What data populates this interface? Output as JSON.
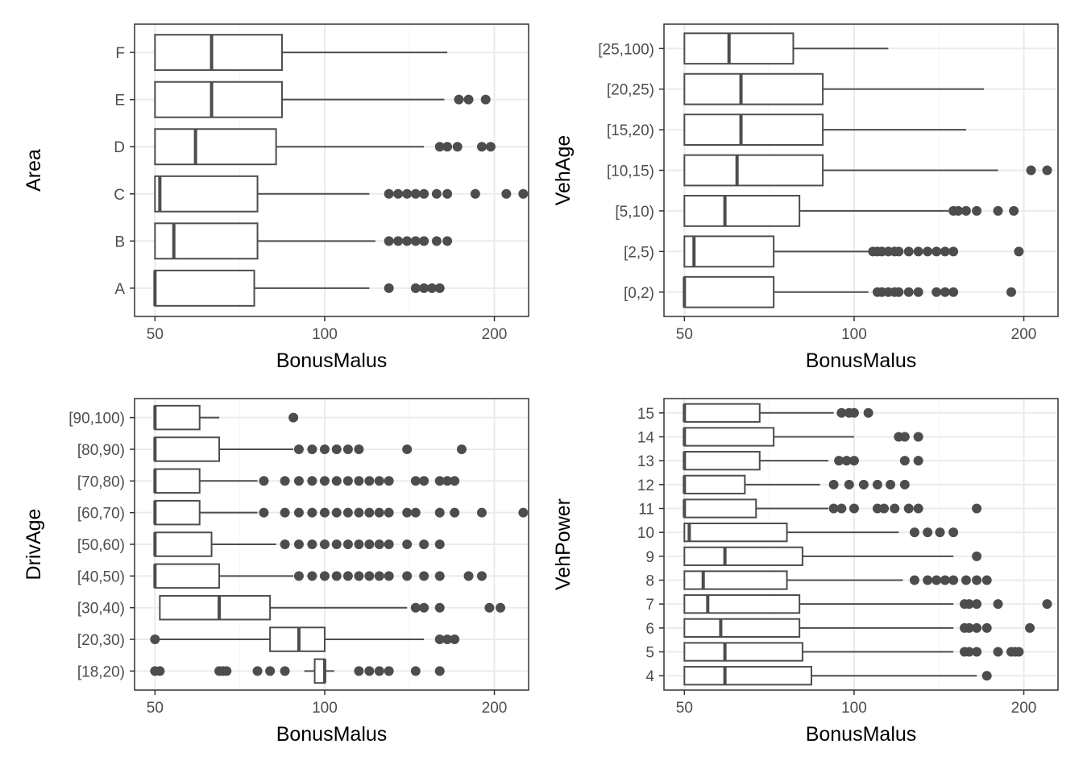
{
  "chart_data": [
    {
      "type": "boxplot",
      "orientation": "horizontal",
      "xlabel": "BonusMalus",
      "ylabel": "Area",
      "x_scale": "log",
      "x_ticks": [
        50,
        100,
        200
      ],
      "xlim": [
        46,
        230
      ],
      "grid": true,
      "categories": [
        "A",
        "B",
        "C",
        "D",
        "E",
        "F"
      ],
      "boxes": [
        {
          "category": "A",
          "q1": 50,
          "median": 50,
          "q3": 75,
          "whisker_low": 50,
          "whisker_high": 120,
          "outliers": [
            130,
            145,
            150,
            155,
            160
          ]
        },
        {
          "category": "B",
          "q1": 50,
          "median": 54,
          "q3": 76,
          "whisker_low": 50,
          "whisker_high": 123,
          "outliers": [
            130,
            135,
            140,
            145,
            150,
            158,
            165
          ]
        },
        {
          "category": "C",
          "q1": 50,
          "median": 51,
          "q3": 76,
          "whisker_low": 50,
          "whisker_high": 120,
          "outliers": [
            130,
            135,
            140,
            145,
            150,
            158,
            165,
            185,
            210,
            225
          ]
        },
        {
          "category": "D",
          "q1": 50,
          "median": 59,
          "q3": 82,
          "whisker_low": 50,
          "whisker_high": 150,
          "outliers": [
            160,
            165,
            172,
            190,
            197
          ]
        },
        {
          "category": "E",
          "q1": 50,
          "median": 63,
          "q3": 84,
          "whisker_low": 50,
          "whisker_high": 163,
          "outliers": [
            173,
            180,
            193
          ]
        },
        {
          "category": "F",
          "q1": 50,
          "median": 63,
          "q3": 84,
          "whisker_low": 50,
          "whisker_high": 165,
          "outliers": []
        }
      ]
    },
    {
      "type": "boxplot",
      "orientation": "horizontal",
      "xlabel": "BonusMalus",
      "ylabel": "VehAge",
      "x_scale": "log",
      "x_ticks": [
        50,
        100,
        200
      ],
      "xlim": [
        46,
        230
      ],
      "grid": true,
      "categories": [
        "[0,2)",
        "[2,5)",
        "[5,10)",
        "[10,15)",
        "[15,20)",
        "[20,25)",
        "[25,100)"
      ],
      "boxes": [
        {
          "category": "[0,2)",
          "q1": 50,
          "median": 50,
          "q3": 72,
          "whisker_low": 50,
          "whisker_high": 106,
          "outliers": [
            110,
            112,
            115,
            118,
            120,
            125,
            130,
            140,
            145,
            150,
            190
          ]
        },
        {
          "category": "[2,5)",
          "q1": 50,
          "median": 52,
          "q3": 72,
          "whisker_low": 50,
          "whisker_high": 106,
          "outliers": [
            108,
            110,
            112,
            115,
            118,
            120,
            125,
            130,
            135,
            140,
            145,
            150,
            196
          ]
        },
        {
          "category": "[5,10)",
          "q1": 50,
          "median": 59,
          "q3": 80,
          "whisker_low": 50,
          "whisker_high": 147,
          "outliers": [
            150,
            153,
            158,
            165,
            180,
            192
          ]
        },
        {
          "category": "[10,15)",
          "q1": 50,
          "median": 62,
          "q3": 88,
          "whisker_low": 50,
          "whisker_high": 180,
          "outliers": [
            206,
            220
          ]
        },
        {
          "category": "[15,20)",
          "q1": 50,
          "median": 63,
          "q3": 88,
          "whisker_low": 50,
          "whisker_high": 158,
          "outliers": []
        },
        {
          "category": "[20,25)",
          "q1": 50,
          "median": 63,
          "q3": 88,
          "whisker_low": 50,
          "whisker_high": 170,
          "outliers": []
        },
        {
          "category": "[25,100)",
          "q1": 50,
          "median": 60,
          "q3": 78,
          "whisker_low": 50,
          "whisker_high": 115,
          "outliers": []
        }
      ]
    },
    {
      "type": "boxplot",
      "orientation": "horizontal",
      "xlabel": "BonusMalus",
      "ylabel": "DrivAge",
      "x_scale": "log",
      "x_ticks": [
        50,
        100,
        200
      ],
      "xlim": [
        46,
        230
      ],
      "grid": true,
      "categories": [
        "[18,20)",
        "[20,30)",
        "[30,40)",
        "[40,50)",
        "[50,60)",
        "[60,70)",
        "[70,80)",
        "[80,90)",
        "[90,100)"
      ],
      "boxes": [
        {
          "category": "[18,20)",
          "q1": 96,
          "median": 100,
          "q3": 100,
          "whisker_low": 92,
          "whisker_high": 104,
          "outliers": [
            50,
            51,
            65,
            66,
            67,
            76,
            80,
            85,
            115,
            120,
            125,
            130,
            145,
            160
          ]
        },
        {
          "category": "[20,30)",
          "q1": 80,
          "median": 90,
          "q3": 100,
          "whisker_low": 50,
          "whisker_high": 150,
          "outliers": [
            50,
            160,
            165,
            170
          ]
        },
        {
          "category": "[30,40)",
          "q1": 51,
          "median": 65,
          "q3": 80,
          "whisker_low": 51,
          "whisker_high": 140,
          "outliers": [
            145,
            150,
            160,
            196,
            205
          ]
        },
        {
          "category": "[40,50)",
          "q1": 50,
          "median": 50,
          "q3": 65,
          "whisker_low": 50,
          "whisker_high": 88,
          "outliers": [
            90,
            95,
            100,
            105,
            110,
            115,
            120,
            125,
            130,
            140,
            150,
            160,
            180,
            190
          ]
        },
        {
          "category": "[50,60)",
          "q1": 50,
          "median": 50,
          "q3": 63,
          "whisker_low": 50,
          "whisker_high": 82,
          "outliers": [
            85,
            90,
            95,
            100,
            105,
            110,
            115,
            120,
            125,
            130,
            140,
            150,
            160
          ]
        },
        {
          "category": "[60,70)",
          "q1": 50,
          "median": 50,
          "q3": 60,
          "whisker_low": 50,
          "whisker_high": 76,
          "outliers": [
            78,
            85,
            90,
            95,
            100,
            105,
            110,
            115,
            120,
            125,
            130,
            140,
            145,
            160,
            170,
            190,
            225
          ]
        },
        {
          "category": "[70,80)",
          "q1": 50,
          "median": 50,
          "q3": 60,
          "whisker_low": 50,
          "whisker_high": 76,
          "outliers": [
            78,
            85,
            90,
            95,
            100,
            105,
            110,
            115,
            120,
            125,
            130,
            145,
            150,
            160,
            165,
            170
          ]
        },
        {
          "category": "[80,90)",
          "q1": 50,
          "median": 50,
          "q3": 65,
          "whisker_low": 50,
          "whisker_high": 88,
          "outliers": [
            90,
            95,
            100,
            105,
            110,
            115,
            140,
            175
          ]
        },
        {
          "category": "[90,100)",
          "q1": 50,
          "median": 50,
          "q3": 60,
          "whisker_low": 50,
          "whisker_high": 65,
          "outliers": [
            88
          ]
        }
      ]
    },
    {
      "type": "boxplot",
      "orientation": "horizontal",
      "xlabel": "BonusMalus",
      "ylabel": "VehPower",
      "x_scale": "log",
      "x_ticks": [
        50,
        100,
        200
      ],
      "xlim": [
        46,
        230
      ],
      "grid": true,
      "categories": [
        "4",
        "5",
        "6",
        "7",
        "8",
        "9",
        "10",
        "11",
        "12",
        "13",
        "14",
        "15"
      ],
      "boxes": [
        {
          "category": "4",
          "q1": 50,
          "median": 59,
          "q3": 84,
          "whisker_low": 50,
          "whisker_high": 165,
          "outliers": [
            172
          ]
        },
        {
          "category": "5",
          "q1": 50,
          "median": 59,
          "q3": 81,
          "whisker_low": 50,
          "whisker_high": 150,
          "outliers": [
            157,
            160,
            165,
            180,
            190,
            193,
            196
          ]
        },
        {
          "category": "6",
          "q1": 50,
          "median": 58,
          "q3": 80,
          "whisker_low": 50,
          "whisker_high": 150,
          "outliers": [
            157,
            160,
            165,
            172,
            205
          ]
        },
        {
          "category": "7",
          "q1": 50,
          "median": 55,
          "q3": 80,
          "whisker_low": 50,
          "whisker_high": 150,
          "outliers": [
            157,
            160,
            165,
            180,
            220
          ]
        },
        {
          "category": "8",
          "q1": 50,
          "median": 54,
          "q3": 76,
          "whisker_low": 50,
          "whisker_high": 122,
          "outliers": [
            128,
            135,
            140,
            145,
            150,
            158,
            165,
            172
          ]
        },
        {
          "category": "9",
          "q1": 50,
          "median": 59,
          "q3": 81,
          "whisker_low": 50,
          "whisker_high": 150,
          "outliers": [
            165
          ]
        },
        {
          "category": "10",
          "q1": 50,
          "median": 51,
          "q3": 76,
          "whisker_low": 50,
          "whisker_high": 120,
          "outliers": [
            128,
            135,
            142,
            150
          ]
        },
        {
          "category": "11",
          "q1": 50,
          "median": 50,
          "q3": 67,
          "whisker_low": 50,
          "whisker_high": 90,
          "outliers": [
            92,
            95,
            100,
            110,
            113,
            118,
            125,
            130,
            165
          ]
        },
        {
          "category": "12",
          "q1": 50,
          "median": 50,
          "q3": 64,
          "whisker_low": 50,
          "whisker_high": 87,
          "outliers": [
            92,
            98,
            104,
            110,
            116,
            123
          ]
        },
        {
          "category": "13",
          "q1": 50,
          "median": 50,
          "q3": 68,
          "whisker_low": 50,
          "whisker_high": 90,
          "outliers": [
            94,
            97,
            100,
            123,
            130
          ]
        },
        {
          "category": "14",
          "q1": 50,
          "median": 50,
          "q3": 72,
          "whisker_low": 50,
          "whisker_high": 100,
          "outliers": [
            120,
            123,
            130
          ]
        },
        {
          "category": "15",
          "q1": 50,
          "median": 50,
          "q3": 68,
          "whisker_low": 50,
          "whisker_high": 92,
          "outliers": [
            95,
            98,
            100,
            106
          ]
        }
      ]
    }
  ],
  "colors": {
    "box_stroke": "#4d4d4d",
    "outlier_fill": "#4d4d4d",
    "grid_major": "#ebebeb",
    "grid_minor": "#f5f5f5",
    "panel_border": "#333333",
    "tick_text": "#4d4d4d",
    "title_text": "#000000"
  }
}
